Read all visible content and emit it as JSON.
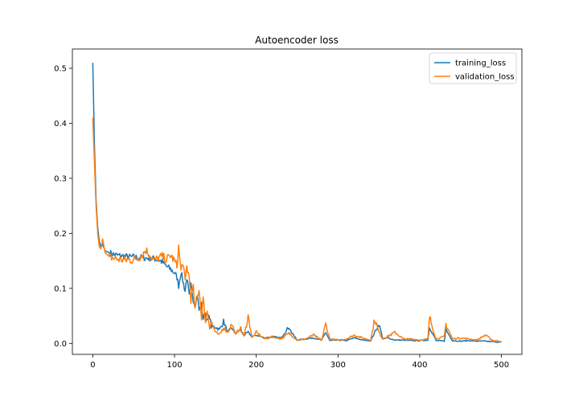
{
  "chart_data": {
    "type": "line",
    "title": "Autoencoder loss",
    "xlabel": "",
    "ylabel": "",
    "xlim": [
      -25,
      525
    ],
    "ylim": [
      -0.02,
      0.535
    ],
    "x_ticks": [
      0,
      100,
      200,
      300,
      400,
      500
    ],
    "y_ticks": [
      0.0,
      0.1,
      0.2,
      0.3,
      0.4,
      0.5
    ],
    "grid": false,
    "legend_position": "upper right",
    "x_anchor": [
      0,
      2,
      4,
      6,
      8,
      10,
      12,
      15,
      20,
      25,
      30,
      35,
      40,
      45,
      50,
      55,
      60,
      65,
      70,
      75,
      80,
      85,
      90,
      95,
      100,
      103,
      105,
      108,
      110,
      113,
      115,
      118,
      120,
      123,
      125,
      128,
      130,
      133,
      135,
      138,
      140,
      143,
      145,
      150,
      155,
      160,
      165,
      170,
      175,
      180,
      185,
      190,
      195,
      200,
      210,
      220,
      230,
      240,
      243,
      250,
      260,
      270,
      280,
      285,
      290,
      300,
      310,
      320,
      330,
      340,
      345,
      350,
      355,
      360,
      370,
      380,
      390,
      400,
      410,
      412,
      420,
      430,
      432,
      440,
      450,
      460,
      470,
      480,
      490,
      500
    ],
    "series": [
      {
        "name": "training_loss",
        "color": "#1f77b4",
        "values": [
          0.51,
          0.36,
          0.26,
          0.21,
          0.185,
          0.175,
          0.18,
          0.168,
          0.165,
          0.162,
          0.16,
          0.159,
          0.158,
          0.157,
          0.157,
          0.156,
          0.156,
          0.155,
          0.155,
          0.154,
          0.152,
          0.148,
          0.14,
          0.135,
          0.128,
          0.12,
          0.105,
          0.13,
          0.115,
          0.095,
          0.12,
          0.085,
          0.105,
          0.08,
          0.07,
          0.09,
          0.06,
          0.07,
          0.045,
          0.055,
          0.04,
          0.05,
          0.03,
          0.03,
          0.025,
          0.04,
          0.02,
          0.028,
          0.018,
          0.025,
          0.015,
          0.02,
          0.012,
          0.015,
          0.01,
          0.012,
          0.01,
          0.03,
          0.02,
          0.006,
          0.008,
          0.01,
          0.006,
          0.02,
          0.005,
          0.006,
          0.005,
          0.01,
          0.006,
          0.005,
          0.02,
          0.035,
          0.008,
          0.01,
          0.006,
          0.006,
          0.005,
          0.005,
          0.006,
          0.03,
          0.005,
          0.004,
          0.025,
          0.005,
          0.004,
          0.005,
          0.004,
          0.004,
          0.003,
          0.002
        ]
      },
      {
        "name": "validation_loss",
        "color": "#ff7f0e",
        "values": [
          0.41,
          0.33,
          0.25,
          0.2,
          0.175,
          0.172,
          0.19,
          0.165,
          0.158,
          0.155,
          0.153,
          0.152,
          0.151,
          0.152,
          0.151,
          0.155,
          0.16,
          0.17,
          0.16,
          0.15,
          0.155,
          0.158,
          0.152,
          0.16,
          0.15,
          0.14,
          0.175,
          0.13,
          0.15,
          0.11,
          0.14,
          0.12,
          0.08,
          0.1,
          0.06,
          0.085,
          0.1,
          0.05,
          0.08,
          0.04,
          0.06,
          0.03,
          0.04,
          0.02,
          0.015,
          0.03,
          0.02,
          0.035,
          0.015,
          0.03,
          0.012,
          0.05,
          0.01,
          0.02,
          0.008,
          0.012,
          0.008,
          0.018,
          0.015,
          0.006,
          0.008,
          0.015,
          0.006,
          0.035,
          0.008,
          0.006,
          0.008,
          0.015,
          0.01,
          0.006,
          0.045,
          0.02,
          0.008,
          0.012,
          0.02,
          0.008,
          0.008,
          0.006,
          0.008,
          0.048,
          0.008,
          0.012,
          0.035,
          0.008,
          0.01,
          0.008,
          0.006,
          0.015,
          0.005,
          0.004
        ]
      }
    ]
  }
}
